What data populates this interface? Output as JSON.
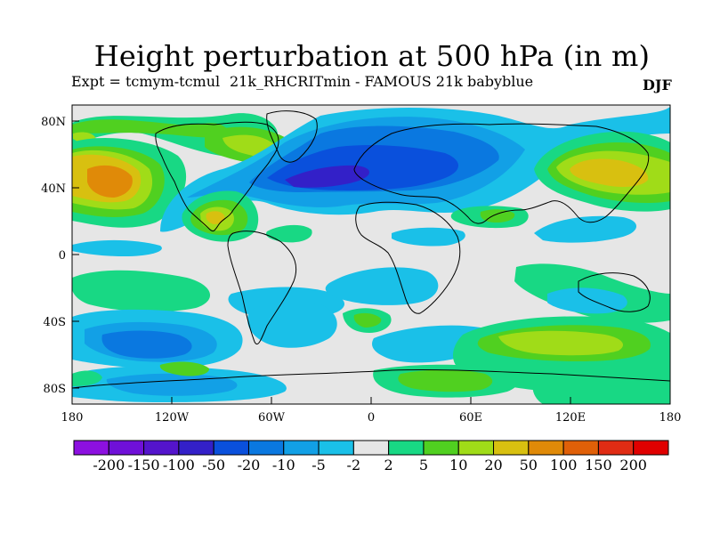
{
  "title": "Height perturbation at 500 hPa (in m)",
  "subtitle_left": "Expt = tcmym-tcmul",
  "subtitle_mid": "21k_RHCRITmin - FAMOUS 21k babyblue",
  "season": "DJF",
  "axes": {
    "x_ticks": [
      "180",
      "120W",
      "60W",
      "0",
      "60E",
      "120E",
      "180"
    ],
    "y_ticks": [
      "80N",
      "40N",
      "0",
      "40S",
      "80S"
    ]
  },
  "colorbar": {
    "labels": [
      "-200",
      "-150",
      "-100",
      "-50",
      "-20",
      "-10",
      "-5",
      "-2",
      "2",
      "5",
      "10",
      "20",
      "50",
      "100",
      "150",
      "200"
    ],
    "colors": [
      "#8c10e0",
      "#6f10d8",
      "#5414cc",
      "#3320c8",
      "#0a50dc",
      "#0a78e0",
      "#12a0e6",
      "#1ac0e8",
      "#e6e6e6",
      "#18d884",
      "#50d020",
      "#a0dc18",
      "#d8c010",
      "#e08a08",
      "#e06008",
      "#e02c14",
      "#e00000"
    ]
  },
  "palette": {
    "background": "#e6e6e6",
    "neg2": "#1ac0e8",
    "neg5": "#12a0e6",
    "neg10": "#0a78e0",
    "neg20": "#0a50dc",
    "neg50": "#3320c8",
    "pos2": "#18d884",
    "pos5": "#50d020",
    "pos10": "#a0dc18",
    "pos20": "#d8c010",
    "pos50": "#e08a08"
  }
}
